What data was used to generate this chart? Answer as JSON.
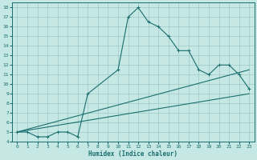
{
  "xlabel": "Humidex (Indice chaleur)",
  "xlim": [
    -0.5,
    23.5
  ],
  "ylim": [
    4,
    18.5
  ],
  "xticks": [
    0,
    1,
    2,
    3,
    4,
    5,
    6,
    7,
    8,
    9,
    10,
    11,
    12,
    13,
    14,
    15,
    16,
    17,
    18,
    19,
    20,
    21,
    22,
    23
  ],
  "yticks": [
    4,
    5,
    6,
    7,
    8,
    9,
    10,
    11,
    12,
    13,
    14,
    15,
    16,
    17,
    18
  ],
  "bg_color": "#c5e8e5",
  "grid_color": "#9fc8c5",
  "line_color": "#1a6e6e",
  "line1_x": [
    0,
    1,
    2,
    3,
    4,
    5,
    6,
    7,
    10,
    11,
    12,
    13,
    14,
    15,
    16,
    17,
    18,
    19,
    20,
    21,
    22,
    23
  ],
  "line1_y": [
    5,
    5,
    4.5,
    4.5,
    5,
    5,
    4.5,
    9,
    11.5,
    17,
    18,
    16.5,
    16,
    15,
    13.5,
    13.5,
    11.5,
    11,
    12,
    12,
    11,
    9.5
  ],
  "line2_x": [
    0,
    23
  ],
  "line2_y": [
    5,
    11.5
  ],
  "line3_x": [
    0,
    23
  ],
  "line3_y": [
    5,
    9.0
  ]
}
